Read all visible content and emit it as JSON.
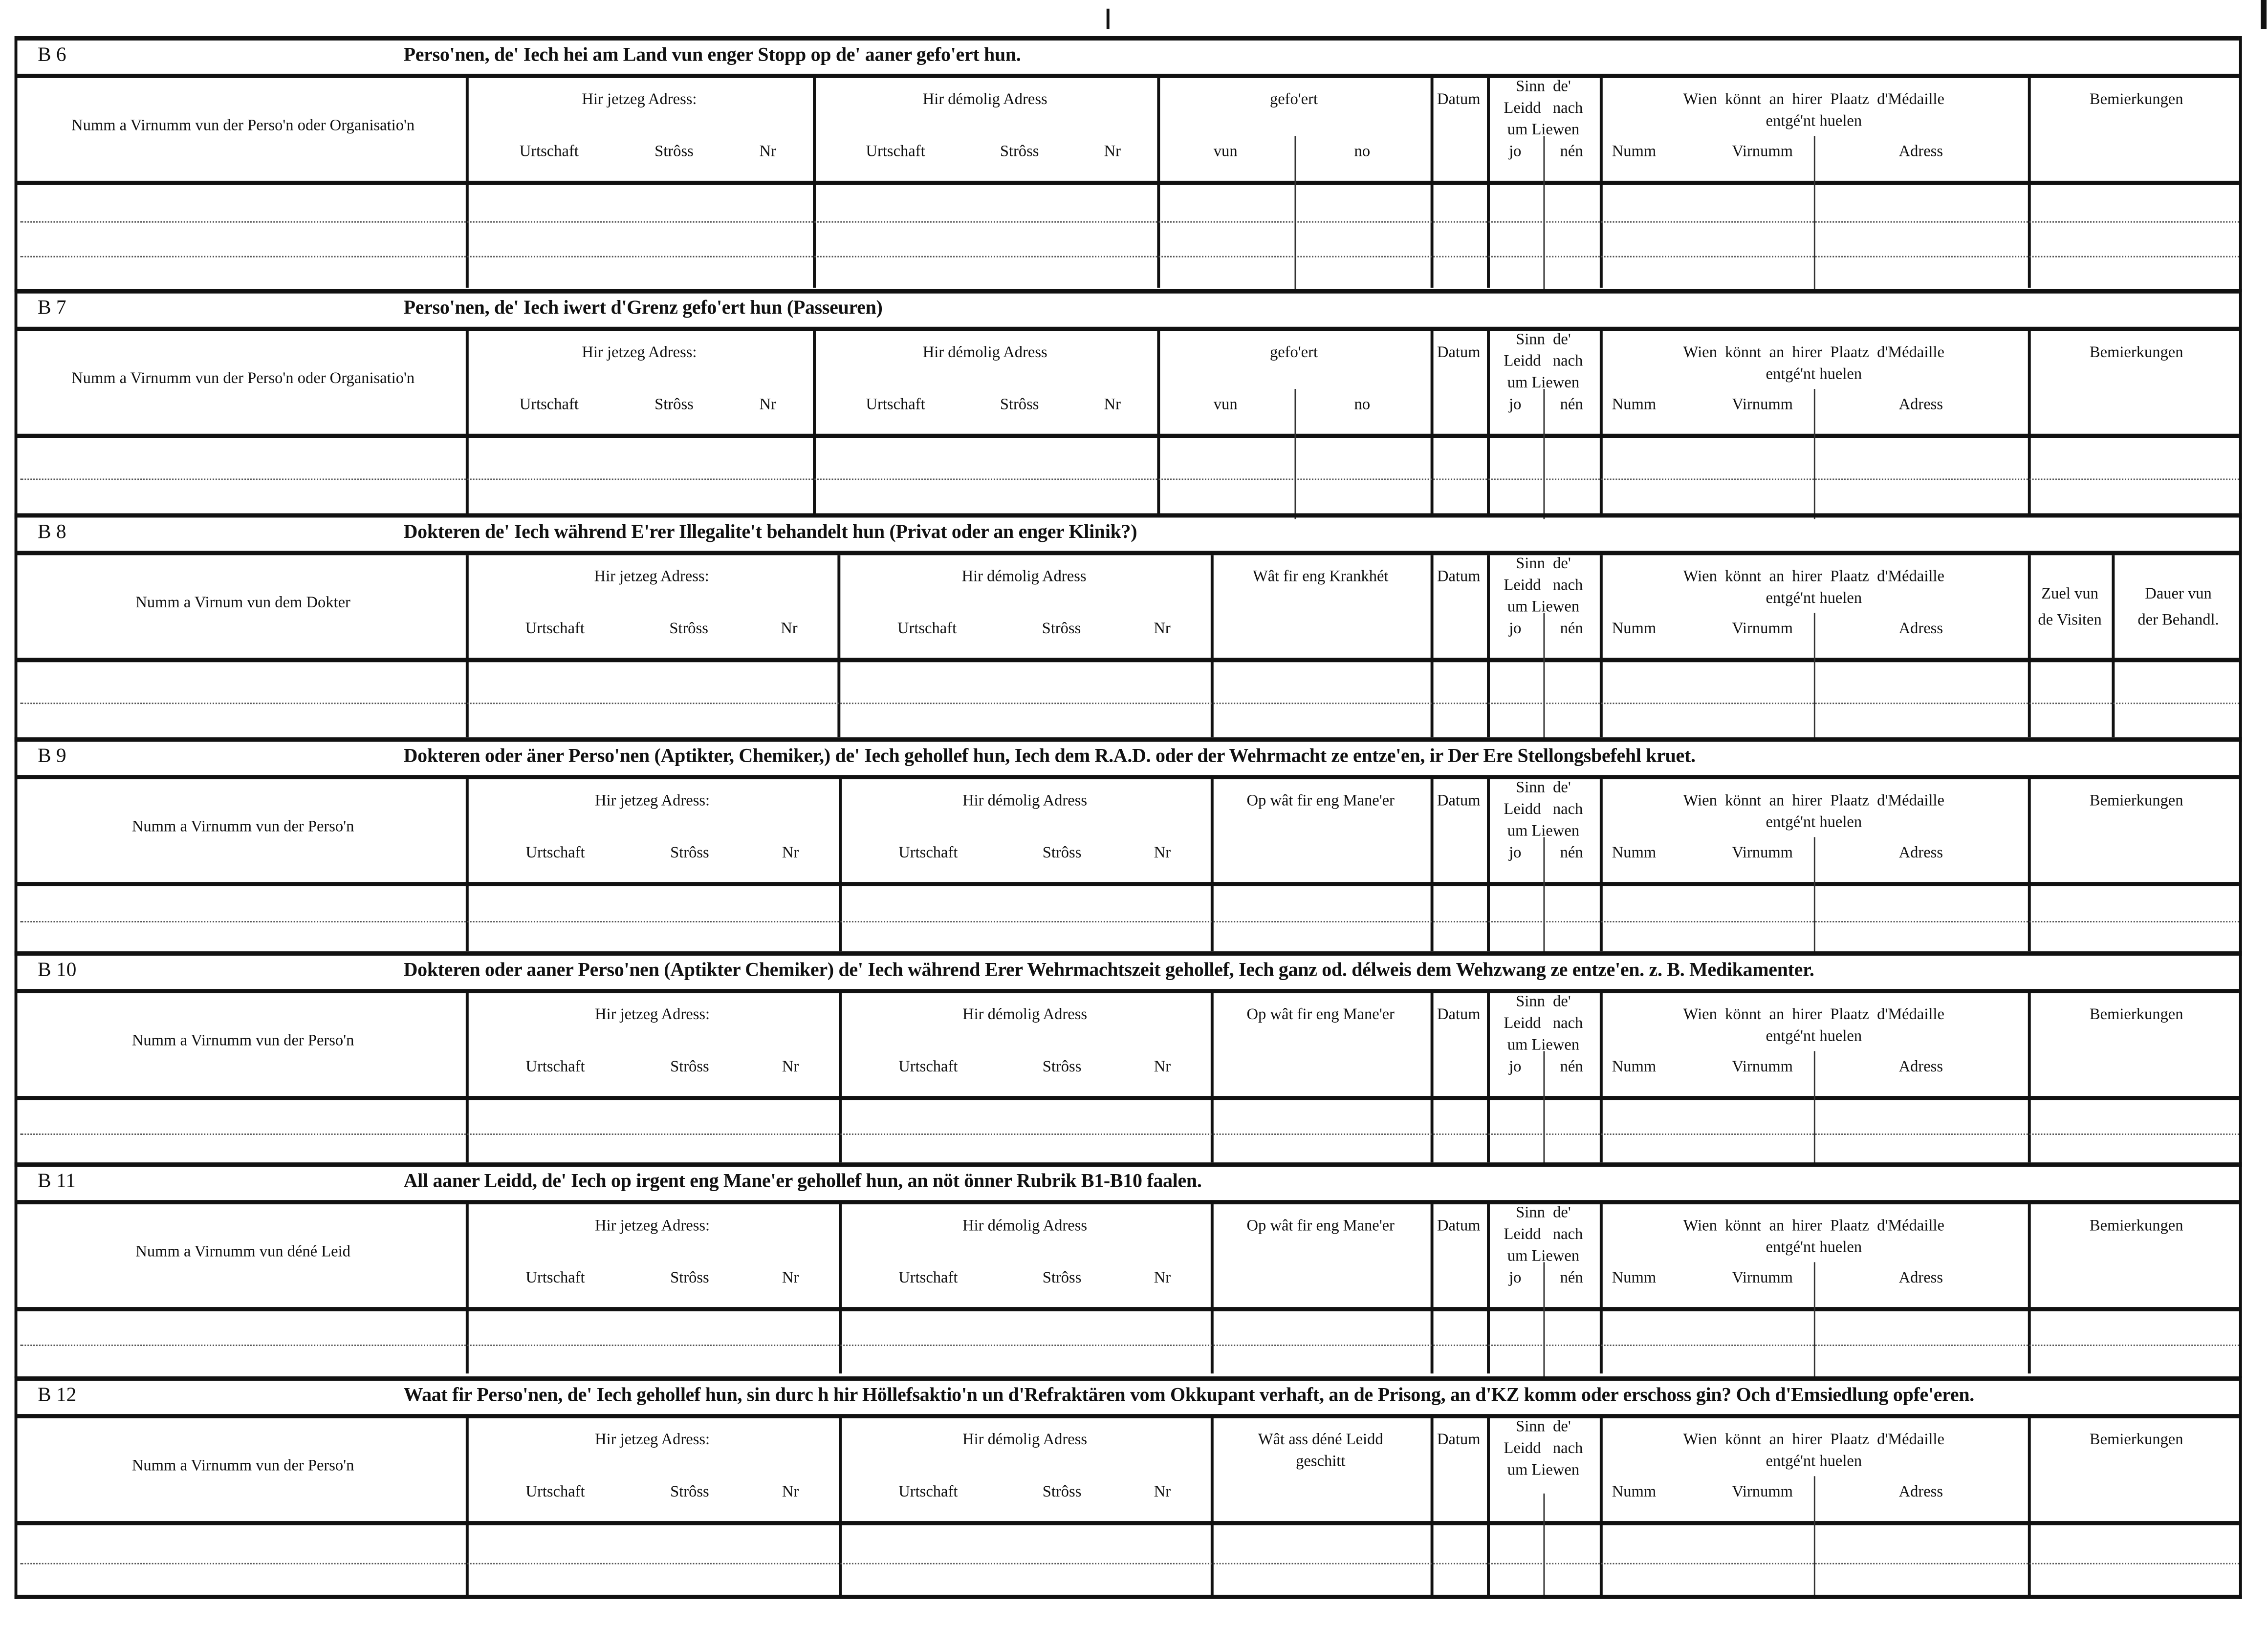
{
  "sections": [
    {
      "code": "B 6",
      "title": "Perso'nen, de' Iech hei am Land vun enger Stopp  op de' aaner gefo'ert hun.",
      "rows": 3,
      "columns": [
        {
          "kind": "name",
          "label": "Numm a Virnumm vun der Perso'n oder Organisatio'n"
        },
        {
          "kind": "addr",
          "label": "Hir jetzeg Adress:",
          "subs": [
            "Urtschaft",
            "Strôss",
            "Nr"
          ]
        },
        {
          "kind": "addr",
          "label": "Hir démolig Adress",
          "subs": [
            "Urtschaft",
            "Strôss",
            "Nr"
          ]
        },
        {
          "kind": "split",
          "label": "gefo'ert",
          "subs": [
            "vun",
            "no"
          ]
        },
        {
          "kind": "single",
          "label": "Datum"
        },
        {
          "kind": "split",
          "label": "Sinn  de'\nLeidd   nach\num Liewen",
          "subs": [
            "jo",
            "nén"
          ]
        },
        {
          "kind": "wien",
          "label": "Wien  könnt  an  hirer  Plaatz  d'Médaille\nentgé'nt huelen",
          "subs": [
            "Numm",
            "Virnumm",
            "Adress"
          ]
        },
        {
          "kind": "single",
          "label": "Bemierkungen"
        }
      ]
    },
    {
      "code": "B 7",
      "title": "Perso'nen, de' Iech iwert d'Grenz gefo'ert hun (Passeuren)",
      "rows": 2,
      "columns": [
        {
          "kind": "name",
          "label": "Numm a Virnumm vun der Perso'n oder Organisatio'n"
        },
        {
          "kind": "addr",
          "label": "Hir jetzeg Adress:",
          "subs": [
            "Urtschaft",
            "Strôss",
            "Nr"
          ]
        },
        {
          "kind": "addr",
          "label": "Hir démolig Adress",
          "subs": [
            "Urtschaft",
            "Strôss",
            "Nr"
          ]
        },
        {
          "kind": "split",
          "label": "gefo'ert",
          "subs": [
            "vun",
            "no"
          ]
        },
        {
          "kind": "single",
          "label": "Datum"
        },
        {
          "kind": "split",
          "label": "Sinn  de'\nLeidd   nach\num Liewen",
          "subs": [
            "jo",
            "nén"
          ]
        },
        {
          "kind": "wien",
          "label": "Wien  könnt  an  hirer  Plaatz  d'Médaille\nentgé'nt huelen",
          "subs": [
            "Numm",
            "Virnumm",
            "Adress"
          ]
        },
        {
          "kind": "single",
          "label": "Bemierkungen"
        }
      ]
    },
    {
      "code": "B 8",
      "title": "Dokteren de' Iech während E'rer Illegalite't behandelt hun (Privat  oder an enger Klinik?)",
      "rows": 2,
      "columns": [
        {
          "kind": "name",
          "label": "Numm a Virnum vun dem Dokter"
        },
        {
          "kind": "addr",
          "label": "Hir jetzeg Adress:",
          "subs": [
            "Urtschaft",
            "Strôss",
            "Nr"
          ]
        },
        {
          "kind": "addr",
          "label": "Hir démolig Adress",
          "subs": [
            "Urtschaft",
            "Strôss",
            "Nr"
          ]
        },
        {
          "kind": "single",
          "label": "Wât fir eng Krankhét"
        },
        {
          "kind": "single",
          "label": "Datum"
        },
        {
          "kind": "split",
          "label": "Sinn  de'\nLeidd   nach\num Liewen",
          "subs": [
            "jo",
            "nén"
          ]
        },
        {
          "kind": "wien",
          "label": "Wien  könnt  an  hirer  Plaatz  d'Médaille\nentgé'nt huelen",
          "subs": [
            "Numm",
            "Virnumm",
            "Adress"
          ]
        },
        {
          "kind": "mid",
          "label": "Zuel vun\nde Visiten"
        },
        {
          "kind": "mid",
          "label": "Dauer vun\nder Behandl."
        }
      ]
    },
    {
      "code": "B 9",
      "title": "Dokteren oder äner Perso'nen (Aptikter, Chemiker,) de' Iech gehollef hun, Iech dem R.A.D. oder der  Wehrmacht  ze  entze'en,  ir  Der Ere  Stellongsbefehl kruet.",
      "rows": 2,
      "columns": [
        {
          "kind": "name",
          "label": "Numm a Virnumm vun der Perso'n"
        },
        {
          "kind": "addr",
          "label": "Hir jetzeg Adress:",
          "subs": [
            "Urtschaft",
            "Strôss",
            "Nr"
          ]
        },
        {
          "kind": "addr",
          "label": "Hir démolig Adress",
          "subs": [
            "Urtschaft",
            "Strôss",
            "Nr"
          ]
        },
        {
          "kind": "single",
          "label": "Op wât fir eng Mane'er"
        },
        {
          "kind": "single",
          "label": "Datum"
        },
        {
          "kind": "split",
          "label": "Sinn  de'\nLeidd   nach\num Liewen",
          "subs": [
            "jo",
            "nén"
          ]
        },
        {
          "kind": "wien",
          "label": "Wien  könnt  an  hirer  Plaatz  d'Médaille\nentgé'nt huelen",
          "subs": [
            "Numm",
            "Virnumm",
            "Adress"
          ]
        },
        {
          "kind": "single",
          "label": "Bemierkungen"
        }
      ]
    },
    {
      "code": "B 10",
      "title": "Dokteren oder aaner Perso'nen (Aptikter Chemiker) de' Iech während Erer Wehrmachtszeit gehollef,  Iech ganz od. délweis dem Wehzwang ze entze'en. z. B. Medikamenter.",
      "rows": 2,
      "columns": [
        {
          "kind": "name",
          "label": "Numm a Virnumm vun der Perso'n"
        },
        {
          "kind": "addr",
          "label": "Hir jetzeg Adress:",
          "subs": [
            "Urtschaft",
            "Strôss",
            "Nr"
          ]
        },
        {
          "kind": "addr",
          "label": "Hir démolig Adress",
          "subs": [
            "Urtschaft",
            "Strôss",
            "Nr"
          ]
        },
        {
          "kind": "single",
          "label": "Op wât fir eng Mane'er"
        },
        {
          "kind": "single",
          "label": "Datum"
        },
        {
          "kind": "split",
          "label": "Sinn  de'\nLeidd   nach\num Liewen",
          "subs": [
            "jo",
            "nén"
          ]
        },
        {
          "kind": "wien",
          "label": "Wien  könnt  an  hirer  Plaatz  d'Médaille\nentgé'nt huelen",
          "subs": [
            "Numm",
            "Virnumm",
            "Adress"
          ]
        },
        {
          "kind": "single",
          "label": "Bemierkungen"
        }
      ]
    },
    {
      "code": "B 11",
      "title": "All aaner Leidd, de' Iech op irgent eng Mane'er  gehollef hun, an nöt önner Rubrik B1-B10 faalen.",
      "rows": 2,
      "columns": [
        {
          "kind": "name",
          "label": "Numm a Virnumm vun déné Leid"
        },
        {
          "kind": "addr",
          "label": "Hir jetzeg Adress:",
          "subs": [
            "Urtschaft",
            "Strôss",
            "Nr"
          ]
        },
        {
          "kind": "addr",
          "label": "Hir démolig Adress",
          "subs": [
            "Urtschaft",
            "Strôss",
            "Nr"
          ]
        },
        {
          "kind": "single",
          "label": "Op wât fir eng Mane'er"
        },
        {
          "kind": "single",
          "label": "Datum"
        },
        {
          "kind": "split",
          "label": "Sinn  de'\nLeidd   nach\num Liewen",
          "subs": [
            "jo",
            "nén"
          ]
        },
        {
          "kind": "wien",
          "label": "Wien  könnt  an  hirer  Plaatz  d'Médaille\nentgé'nt huelen",
          "subs": [
            "Numm",
            "Virnumm",
            "Adress"
          ]
        },
        {
          "kind": "single",
          "label": "Bemierkungen"
        }
      ]
    },
    {
      "code": "B 12",
      "title": "Waat fir Perso'nen, de' Iech gehollef hun, sin durc h hir Höllefsaktio'n un d'Refraktären vom Okkupant verhaft, an de Prisong, an d'KZ komm oder  erschoss gin? Och d'Emsiedlung opfe'eren.",
      "rows": 2,
      "columns": [
        {
          "kind": "name",
          "label": "Numm a Virnumm vun der Perso'n"
        },
        {
          "kind": "addr",
          "label": "Hir jetzeg Adress:",
          "subs": [
            "Urtschaft",
            "Strôss",
            "Nr"
          ]
        },
        {
          "kind": "addr",
          "label": "Hir démolig Adress",
          "subs": [
            "Urtschaft",
            "Strôss",
            "Nr"
          ]
        },
        {
          "kind": "single",
          "label": "Wât ass déné Leidd\ngeschitt"
        },
        {
          "kind": "single",
          "label": "Datum"
        },
        {
          "kind": "split",
          "label": "Sinn  de'\nLeidd   nach\num Liewen",
          "subs": [
            "",
            ""
          ]
        },
        {
          "kind": "wien",
          "label": "Wien  könnt  an  hirer  Plaatz  d'Médaille\nentgé'nt huelen",
          "subs": [
            "Numm",
            "Virnumm",
            "Adress"
          ]
        },
        {
          "kind": "single",
          "label": "Bemierkungen"
        }
      ]
    }
  ]
}
